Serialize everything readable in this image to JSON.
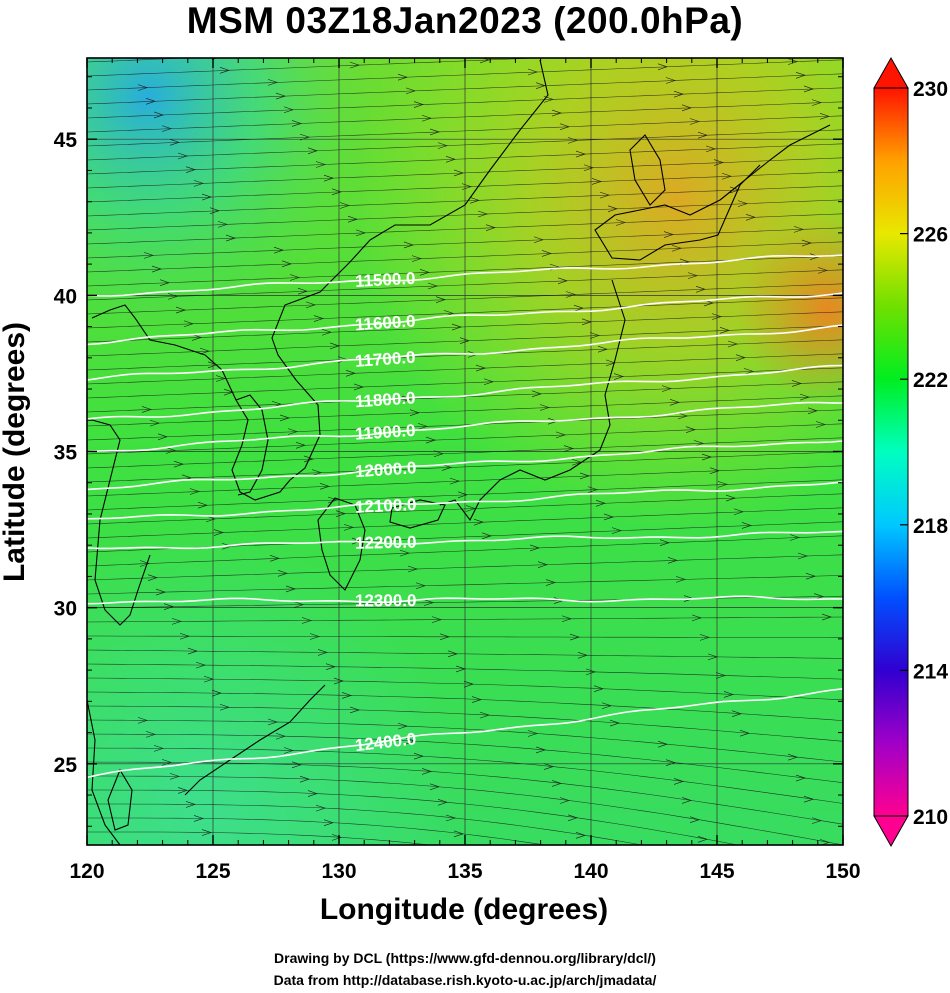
{
  "title": "MSM 03Z18Jan2023 (200.0hPa)",
  "xlabel": "Longitude (degrees)",
  "ylabel": "Latitude  (degrees)",
  "credits": [
    "Drawing by DCL (https://www.gfd-dennou.org/library/dcl/)",
    "Data from http://database.rish.kyoto-u.ac.jp/arch/jmadata/"
  ],
  "map": {
    "lon_range": [
      120,
      150
    ],
    "lat_range": [
      22.4,
      47.6
    ],
    "lon_ticks": [
      "120",
      "125",
      "130",
      "135",
      "140",
      "145",
      "150"
    ],
    "lat_ticks": [
      "25",
      "30",
      "35",
      "40",
      "45"
    ],
    "lon_tick_values": [
      120,
      125,
      130,
      135,
      140,
      145,
      150
    ],
    "lat_tick_values": [
      25,
      30,
      35,
      40,
      45
    ]
  },
  "colorbar": {
    "range": [
      210,
      230
    ],
    "tick_labels": [
      "230",
      "226",
      "222",
      "218",
      "214",
      "210"
    ],
    "tick_values": [
      230,
      226,
      222,
      218,
      214,
      210
    ],
    "colors": [
      "#ff0090",
      "#a000c8",
      "#3000d0",
      "#0050ff",
      "#00c8ff",
      "#00ffc0",
      "#00ee20",
      "#70e000",
      "#e8e800",
      "#ffa000",
      "#ff1400"
    ]
  },
  "contours": [
    {
      "label": "11500.0",
      "lat_west": 40.0,
      "lat_east": 41.3
    },
    {
      "label": "11600.0",
      "lat_west": 38.5,
      "lat_east": 40.1
    },
    {
      "label": "11700.0",
      "lat_west": 37.3,
      "lat_east": 39.0
    },
    {
      "label": "11800.0",
      "lat_west": 36.0,
      "lat_east": 37.7
    },
    {
      "label": "11900.0",
      "lat_west": 35.0,
      "lat_east": 36.6
    },
    {
      "label": "12000.0",
      "lat_west": 33.8,
      "lat_east": 35.4
    },
    {
      "label": "12100.0",
      "lat_west": 32.8,
      "lat_east": 34.0
    },
    {
      "label": "12200.0",
      "lat_west": 31.9,
      "lat_east": 32.4
    },
    {
      "label": "12300.0",
      "lat_west": 30.2,
      "lat_east": 30.3
    },
    {
      "label": "12400.0",
      "lat_west": 24.6,
      "lat_east": 27.4
    }
  ]
}
